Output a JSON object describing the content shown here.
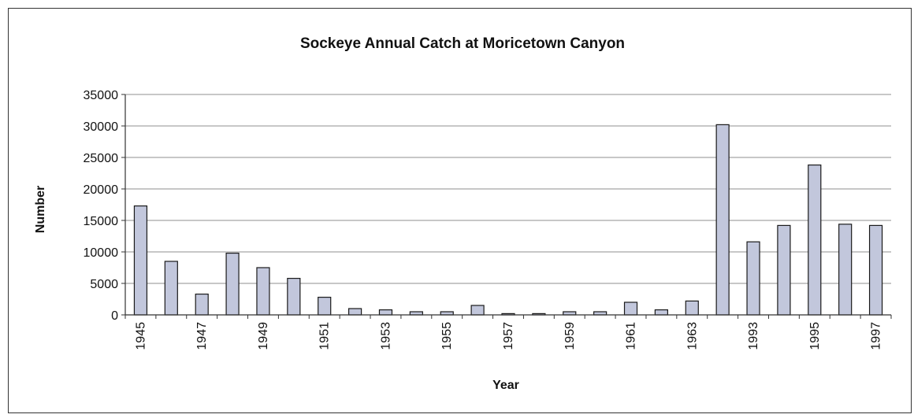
{
  "chart_data": {
    "type": "bar",
    "title": "Sockeye Annual Catch at Moricetown Canyon",
    "xlabel": "Year",
    "ylabel": "Number",
    "ylim": [
      0,
      35000
    ],
    "y_ticks": [
      0,
      5000,
      10000,
      15000,
      20000,
      25000,
      30000,
      35000
    ],
    "grid": "horizontal",
    "legend": "none",
    "categories": [
      "1945",
      "1946",
      "1947",
      "1948",
      "1949",
      "1950",
      "1951",
      "1952",
      "1953",
      "1954",
      "1955",
      "1956",
      "1957",
      "1958",
      "1959",
      "1960",
      "1961",
      "1962",
      "1963",
      "1992",
      "1993",
      "1994",
      "1995",
      "1996",
      "1997"
    ],
    "tick_labels": [
      "1945",
      "",
      "1947",
      "",
      "1949",
      "",
      "1951",
      "",
      "1953",
      "",
      "1955",
      "",
      "1957",
      "",
      "1959",
      "",
      "1961",
      "",
      "1963",
      "",
      "1993",
      "",
      "1995",
      "",
      "1997"
    ],
    "values": [
      17300,
      8500,
      3300,
      9800,
      7500,
      5800,
      2800,
      1000,
      800,
      500,
      500,
      1500,
      200,
      200,
      500,
      500,
      2000,
      800,
      2200,
      30200,
      11600,
      14200,
      23800,
      14400,
      14200
    ],
    "colors": {
      "bar_fill": "#c2c7dc",
      "bar_stroke": "#1a1a1a",
      "grid": "#8f8f8f",
      "axis": "#333333"
    }
  }
}
